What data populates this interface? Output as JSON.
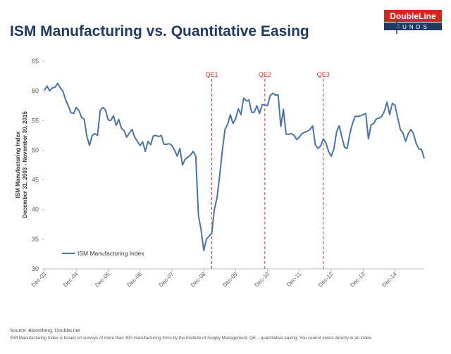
{
  "chart_data": {
    "type": "line",
    "title": "ISM Manufacturing vs. Quantitative Easing",
    "brand": "DoubleLine",
    "brand_sub": "FUNDS",
    "y_label": [
      "ISM Manufacturing Index",
      "December 31, 2003 - November 30, 2015"
    ],
    "source": "Source: Bloomberg, DoubleLine",
    "footnote": "ISM Manufacturing Index is based on surveys of more than 300 manufacturing firms by the institute of Supply Management. QE – quantitative easing. You cannot invest directly in an index.",
    "ylim": [
      30,
      65
    ],
    "yticks": [
      30,
      35,
      40,
      45,
      50,
      55,
      60,
      65
    ],
    "categories": [
      "Dec-03",
      null,
      null,
      null,
      null,
      null,
      null,
      null,
      null,
      null,
      null,
      null,
      "Dec-04",
      null,
      null,
      null,
      null,
      null,
      null,
      null,
      null,
      null,
      null,
      null,
      "Dec-05",
      null,
      null,
      null,
      null,
      null,
      null,
      null,
      null,
      null,
      null,
      null,
      "Dec-06",
      null,
      null,
      null,
      null,
      null,
      null,
      null,
      null,
      null,
      null,
      null,
      "Dec-07",
      null,
      null,
      null,
      null,
      null,
      null,
      null,
      null,
      null,
      null,
      null,
      "Dec-08",
      null,
      null,
      null,
      null,
      null,
      null,
      null,
      null,
      null,
      null,
      null,
      "Dec-09",
      null,
      null,
      null,
      null,
      null,
      null,
      null,
      null,
      null,
      null,
      null,
      "Dec-10",
      null,
      null,
      null,
      null,
      null,
      null,
      null,
      null,
      null,
      null,
      null,
      "Dec-11",
      null,
      null,
      null,
      null,
      null,
      null,
      null,
      null,
      null,
      null,
      null,
      "Dec-12",
      null,
      null,
      null,
      null,
      null,
      null,
      null,
      null,
      null,
      null,
      null,
      "Dec-13",
      null,
      null,
      null,
      null,
      null,
      null,
      null,
      null,
      null,
      null,
      null,
      "Dec-14",
      null,
      null,
      null,
      null,
      null,
      null,
      null,
      null,
      null,
      null,
      null
    ],
    "legend": "lower left",
    "series": [
      {
        "name": "ISM Manufacturing Index",
        "color": "#4a74a9",
        "values": [
          60.1,
          60.8,
          60,
          60.5,
          60.6,
          61.3,
          60.5,
          59.9,
          58.5,
          57.5,
          56.3,
          56.2,
          57.2,
          56.7,
          55.5,
          55.2,
          52.3,
          50.8,
          52.5,
          52.8,
          52.5,
          56.7,
          57.2,
          56.8,
          55.1,
          55,
          55.8,
          54.2,
          55.2,
          53.7,
          53.3,
          52.2,
          52.9,
          53.5,
          52.2,
          51.5,
          50.8,
          51.4,
          49.8,
          51.5,
          50.9,
          52.4,
          52.5,
          52.3,
          52.5,
          51,
          51,
          51.1,
          50.8,
          50,
          49,
          50.3,
          47.5,
          48.5,
          48.8,
          49.2,
          49.8,
          49,
          39,
          36.5,
          33.1,
          35,
          35.5,
          36,
          40,
          42,
          45.8,
          49.9,
          53.5,
          54.4,
          56,
          54.5,
          55.3,
          57,
          56,
          58.8,
          58.3,
          58.5,
          56.4,
          56.4,
          57.5,
          56.2,
          57.7,
          57.6,
          57.5,
          59.2,
          59.6,
          59.3,
          59.3,
          54,
          56.9,
          52.7,
          52.7,
          52.8,
          52.5,
          51.8,
          52.2,
          52.8,
          53,
          53.2,
          53.5,
          54.1,
          50.9,
          50.3,
          50.7,
          51.9,
          51.2,
          49.8,
          49,
          50.2,
          53.1,
          54.1,
          52.2,
          50.5,
          50.3,
          52.8,
          54.5,
          55.7,
          55.7,
          55.8,
          56,
          56.2,
          51.9,
          54.3,
          54.5,
          55.3,
          55.4,
          55.7,
          56.6,
          58.1,
          56,
          57.9,
          57.6,
          55.5,
          53.5,
          52.9,
          51.5,
          52.8,
          53.5,
          52.7,
          51.1,
          50.2,
          50.1,
          48.6
        ]
      }
    ],
    "annotations": [
      {
        "label": "QE1",
        "at": 63,
        "color": "#e03030"
      },
      {
        "label": "QE2",
        "at": 83,
        "color": "#e03030"
      },
      {
        "label": "QE3",
        "at": 105,
        "color": "#e03030"
      }
    ]
  }
}
